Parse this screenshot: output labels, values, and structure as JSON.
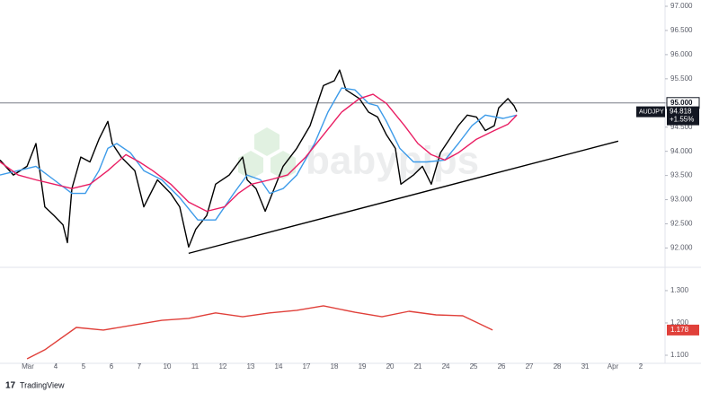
{
  "chart_data": [
    {
      "type": "line",
      "symbol": "AUDJPY",
      "change_label": "+1.55%",
      "watermark": "babypips",
      "xlim": [
        -1,
        22.87
      ],
      "ylim": [
        91.6,
        97.13
      ],
      "yticks": [
        {
          "value": 97,
          "label": "97.000"
        },
        {
          "value": 96.5,
          "label": "96.500"
        },
        {
          "value": 96,
          "label": "96.000"
        },
        {
          "value": 95.5,
          "label": "95.500"
        },
        {
          "value": 95,
          "label": "95.000"
        },
        {
          "value": 94.5,
          "label": "94.500"
        },
        {
          "value": 94,
          "label": "94.000"
        },
        {
          "value": 93.5,
          "label": "93.500"
        },
        {
          "value": 93,
          "label": "93.000"
        },
        {
          "value": 92.5,
          "label": "92.500"
        },
        {
          "value": 92,
          "label": "92.000"
        }
      ],
      "price_line": {
        "value": 95,
        "label": "95.000",
        "color": "#787b86"
      },
      "series": [
        {
          "color": "#000000",
          "x": [
            -1.0,
            -0.52,
            -0.03,
            0.29,
            0.61,
            0.94,
            1.26,
            1.42,
            1.58,
            1.9,
            2.23,
            2.55,
            2.87,
            3.03,
            3.35,
            3.84,
            4.16,
            4.65,
            5.13,
            5.45,
            5.77,
            6.03,
            6.42,
            6.74,
            7.23,
            7.71,
            7.87,
            8.19,
            8.52,
            8.84,
            9.16,
            9.65,
            10.13,
            10.45,
            10.61,
            11.0,
            11.19,
            11.42,
            11.9,
            12.23,
            12.55,
            12.87,
            13.19,
            13.39,
            13.84,
            14.16,
            14.48,
            14.81,
            15.13,
            15.45,
            15.77,
            16.1,
            16.42,
            16.74,
            16.9,
            17.23,
            17.45,
            17.55
          ],
          "values": [
            93.82,
            93.51,
            93.69,
            94.16,
            92.85,
            92.67,
            92.48,
            92.11,
            93.23,
            93.88,
            93.78,
            94.25,
            94.62,
            94.16,
            93.88,
            93.6,
            92.85,
            93.41,
            93.13,
            92.85,
            92.02,
            92.39,
            92.67,
            93.32,
            93.51,
            93.88,
            93.41,
            93.23,
            92.76,
            93.23,
            93.69,
            94.06,
            94.53,
            95.09,
            95.36,
            95.46,
            95.68,
            95.27,
            95.09,
            94.81,
            94.71,
            94.34,
            94.06,
            93.32,
            93.51,
            93.69,
            93.32,
            93.97,
            94.25,
            94.53,
            94.75,
            94.71,
            94.43,
            94.53,
            94.9,
            95.09,
            94.94,
            94.818
          ]
        },
        {
          "color": "#3d9be9",
          "x": [
            -1.0,
            -0.35,
            0.29,
            0.94,
            1.58,
            2.06,
            2.55,
            2.87,
            3.19,
            3.68,
            4.16,
            4.81,
            5.45,
            6.1,
            6.74,
            7.39,
            7.87,
            8.35,
            8.68,
            9.16,
            9.65,
            10.29,
            10.77,
            11.26,
            11.74,
            12.23,
            12.55,
            12.87,
            13.35,
            13.84,
            14.32,
            14.97,
            15.45,
            15.94,
            16.42,
            17.06,
            17.55
          ],
          "values": [
            93.51,
            93.6,
            93.69,
            93.41,
            93.13,
            93.13,
            93.6,
            94.06,
            94.16,
            93.97,
            93.6,
            93.41,
            93.04,
            92.58,
            92.58,
            93.13,
            93.51,
            93.41,
            93.13,
            93.23,
            93.51,
            94.16,
            94.81,
            95.31,
            95.27,
            94.99,
            94.94,
            94.62,
            94.06,
            93.78,
            93.78,
            93.82,
            94.16,
            94.53,
            94.75,
            94.68,
            94.75
          ]
        },
        {
          "color": "#e91e63",
          "x": [
            -1.0,
            -0.35,
            0.29,
            0.94,
            1.58,
            2.23,
            2.87,
            3.52,
            4.0,
            4.48,
            5.13,
            5.77,
            6.42,
            7.06,
            7.55,
            8.03,
            8.68,
            9.32,
            9.97,
            10.61,
            11.26,
            11.9,
            12.39,
            12.87,
            13.52,
            14.0,
            14.48,
            14.97,
            15.45,
            16.1,
            16.74,
            17.23,
            17.55
          ],
          "values": [
            93.78,
            93.51,
            93.41,
            93.32,
            93.23,
            93.32,
            93.6,
            93.93,
            93.78,
            93.6,
            93.32,
            92.95,
            92.76,
            92.85,
            93.13,
            93.32,
            93.41,
            93.51,
            93.88,
            94.34,
            94.81,
            95.09,
            95.18,
            94.99,
            94.53,
            94.16,
            93.93,
            93.82,
            93.97,
            94.25,
            94.43,
            94.56,
            94.75
          ]
        }
      ],
      "trendline": {
        "x": [
          5.77,
          21.19
        ],
        "values": [
          91.89,
          94.21
        ],
        "color": "#000000"
      }
    },
    {
      "type": "line",
      "xlim": [
        -1,
        22.87
      ],
      "ylim": [
        1.075,
        1.372
      ],
      "yticks": [
        {
          "value": 1.3,
          "label": "1.300"
        },
        {
          "value": 1.2,
          "label": "1.200"
        },
        {
          "value": 1.1,
          "label": "1.100"
        }
      ],
      "xticks": [
        {
          "value": 0,
          "label": "Mar"
        },
        {
          "value": 1,
          "label": "4"
        },
        {
          "value": 2,
          "label": "5"
        },
        {
          "value": 3,
          "label": "6"
        },
        {
          "value": 4,
          "label": "7"
        },
        {
          "value": 5,
          "label": "10"
        },
        {
          "value": 6,
          "label": "11"
        },
        {
          "value": 7,
          "label": "12"
        },
        {
          "value": 8,
          "label": "13"
        },
        {
          "value": 9,
          "label": "14"
        },
        {
          "value": 10,
          "label": "17"
        },
        {
          "value": 11,
          "label": "18"
        },
        {
          "value": 12,
          "label": "19"
        },
        {
          "value": 13,
          "label": "20"
        },
        {
          "value": 14,
          "label": "21"
        },
        {
          "value": 15,
          "label": "24"
        },
        {
          "value": 16,
          "label": "25"
        },
        {
          "value": 17,
          "label": "26"
        },
        {
          "value": 18,
          "label": "27"
        },
        {
          "value": 19,
          "label": "28"
        },
        {
          "value": 20,
          "label": "31"
        },
        {
          "value": 21,
          "label": "Apr"
        },
        {
          "value": 22,
          "label": "2"
        }
      ],
      "series": [
        {
          "color": "#e0403a",
          "x": [
            -0.03,
            0.61,
            1.74,
            2.71,
            3.84,
            4.81,
            5.77,
            6.74,
            7.71,
            8.68,
            9.65,
            10.61,
            11.74,
            12.71,
            13.68,
            14.65,
            15.61,
            16.68
          ],
          "values": [
            1.089,
            1.117,
            1.186,
            1.178,
            1.194,
            1.208,
            1.214,
            1.231,
            1.219,
            1.231,
            1.239,
            1.253,
            1.233,
            1.219,
            1.236,
            1.225,
            1.222,
            1.178
          ]
        }
      ]
    }
  ],
  "footer": {
    "brand": "TradingView"
  }
}
